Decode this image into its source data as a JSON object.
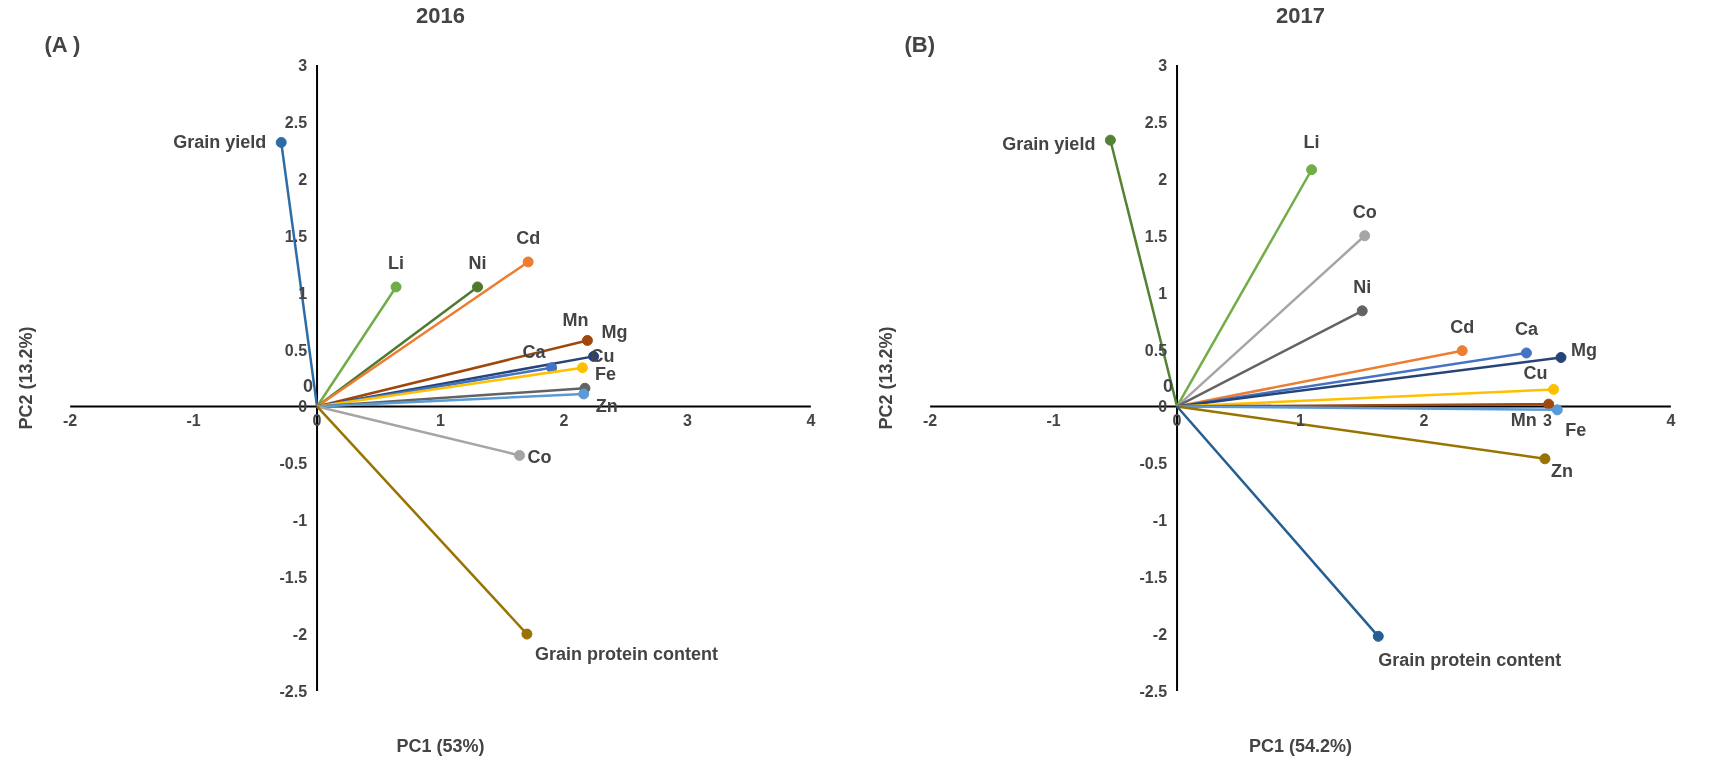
{
  "chart_data": [
    {
      "type": "line",
      "title": "2016",
      "xlabel": "PC1 (53%)",
      "ylabel": "PC2 (13.2%)",
      "marker": "circle",
      "line_style": "solid",
      "grid": false,
      "xlim": [
        -2,
        4
      ],
      "ylim": [
        -2.5,
        3
      ],
      "xticks": [
        -2,
        -1,
        0,
        1,
        2,
        3,
        4
      ],
      "yticks": [
        -2.5,
        -2,
        -1.5,
        -1,
        -0.5,
        0,
        0.5,
        1,
        1.5,
        2,
        2.5,
        3
      ],
      "annotations": [
        "(A )",
        {
          "text": "0",
          "x": 0,
          "y": 0
        }
      ],
      "series": [
        {
          "name": "Grain yield",
          "color": "#2e6da4",
          "x": [
            0,
            -0.29
          ],
          "values": [
            0,
            2.32
          ]
        },
        {
          "name": "Li",
          "color": "#70ad47",
          "x": [
            0,
            0.64
          ],
          "values": [
            0,
            1.05
          ]
        },
        {
          "name": "Ni",
          "color": "#4e7a2e",
          "x": [
            0,
            1.3
          ],
          "values": [
            0,
            1.05
          ]
        },
        {
          "name": "Cd",
          "color": "#ed7d31",
          "x": [
            0,
            1.71
          ],
          "values": [
            0,
            1.27
          ]
        },
        {
          "name": "Mn",
          "color": "#9e480e",
          "x": [
            0,
            2.19
          ],
          "values": [
            0,
            0.58
          ]
        },
        {
          "name": "Mg",
          "color": "#264478",
          "x": [
            0,
            2.24
          ],
          "values": [
            0,
            0.44
          ]
        },
        {
          "name": "Ca",
          "color": "#4472c4",
          "x": [
            0,
            1.9
          ],
          "values": [
            0,
            0.34
          ]
        },
        {
          "name": "Cu",
          "color": "#ffc000",
          "x": [
            0,
            2.15
          ],
          "values": [
            0,
            0.34
          ]
        },
        {
          "name": "Fe",
          "color": "#636363",
          "x": [
            0,
            2.17
          ],
          "values": [
            0,
            0.16
          ]
        },
        {
          "name": "Zn",
          "color": "#5b9bd5",
          "x": [
            0,
            2.16
          ],
          "values": [
            0,
            0.11
          ]
        },
        {
          "name": "Co",
          "color": "#a5a5a5",
          "x": [
            0,
            1.64
          ],
          "values": [
            0,
            -0.43
          ]
        },
        {
          "name": "Grain protein content",
          "color": "#997300",
          "x": [
            0,
            1.7
          ],
          "values": [
            0,
            -2.0
          ]
        }
      ]
    },
    {
      "type": "line",
      "title": "2017",
      "xlabel": "PC1 (54.2%)",
      "ylabel": "PC2 (13.2%)",
      "marker": "circle",
      "line_style": "solid",
      "grid": false,
      "xlim": [
        -2,
        4
      ],
      "ylim": [
        -2.5,
        3
      ],
      "xticks": [
        -2,
        -1,
        0,
        1,
        2,
        3,
        4
      ],
      "yticks": [
        -2.5,
        -2,
        -1.5,
        -1,
        -0.5,
        0,
        0.5,
        1,
        1.5,
        2,
        2.5,
        3
      ],
      "annotations": [
        "(B)",
        {
          "text": "0",
          "x": 0,
          "y": 0
        }
      ],
      "series": [
        {
          "name": "Grain yield",
          "color": "#548235",
          "x": [
            0,
            -0.54
          ],
          "values": [
            0,
            2.34
          ]
        },
        {
          "name": "Li",
          "color": "#70ad47",
          "x": [
            0,
            1.09
          ],
          "values": [
            0,
            2.08
          ]
        },
        {
          "name": "Co",
          "color": "#a5a5a5",
          "x": [
            0,
            1.52
          ],
          "values": [
            0,
            1.5
          ]
        },
        {
          "name": "Ni",
          "color": "#636363",
          "x": [
            0,
            1.5
          ],
          "values": [
            0,
            0.84
          ]
        },
        {
          "name": "Cd",
          "color": "#ed7d31",
          "x": [
            0,
            2.31
          ],
          "values": [
            0,
            0.49
          ]
        },
        {
          "name": "Ca",
          "color": "#4472c4",
          "x": [
            0,
            2.83
          ],
          "values": [
            0,
            0.47
          ]
        },
        {
          "name": "Mg",
          "color": "#264478",
          "x": [
            0,
            3.11
          ],
          "values": [
            0,
            0.43
          ]
        },
        {
          "name": "Cu",
          "color": "#ffc000",
          "x": [
            0,
            3.05
          ],
          "values": [
            0,
            0.15
          ]
        },
        {
          "name": "Mn",
          "color": "#9e480e",
          "x": [
            0,
            3.01
          ],
          "values": [
            0,
            0.02
          ]
        },
        {
          "name": "Fe",
          "color": "#5b9bd5",
          "x": [
            0,
            3.08
          ],
          "values": [
            0,
            -0.03
          ]
        },
        {
          "name": "Zn",
          "color": "#997300",
          "x": [
            0,
            2.98
          ],
          "values": [
            0,
            -0.46
          ]
        },
        {
          "name": "Grain protein content",
          "color": "#255e91",
          "x": [
            0,
            1.63
          ],
          "values": [
            0,
            -2.02
          ]
        }
      ]
    }
  ]
}
